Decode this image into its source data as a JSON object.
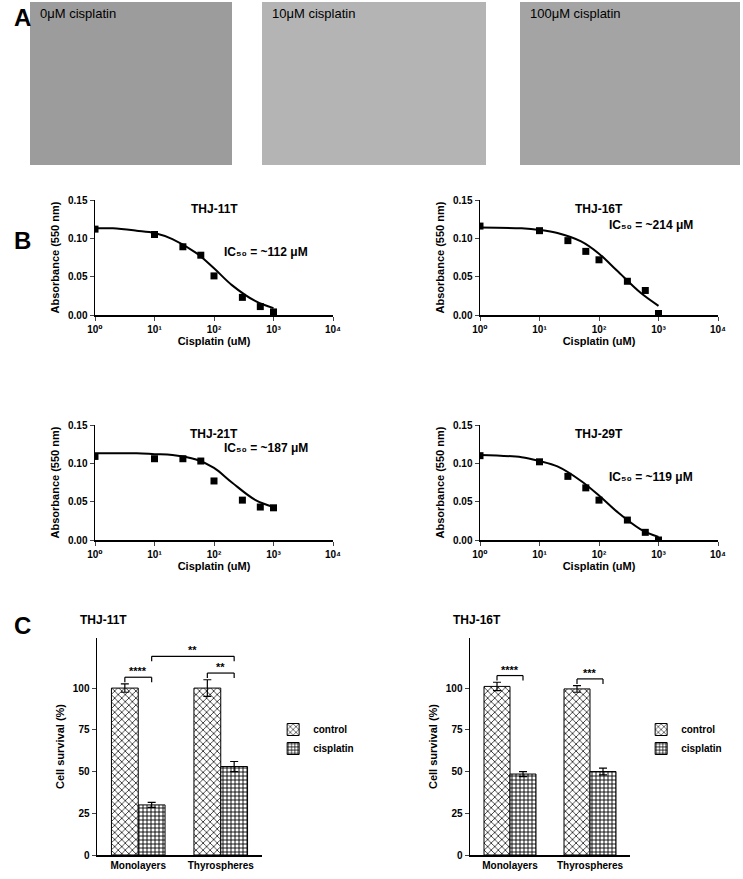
{
  "panel_labels": [
    "A",
    "B",
    "C"
  ],
  "images": [
    {
      "label": "0μM cisplatin"
    },
    {
      "label": "10μM cisplatin"
    },
    {
      "label": "100μM cisplatin"
    }
  ],
  "chart_data": [
    {
      "type": "scatter",
      "title": "THJ-11T",
      "xlabel": "Cisplatin (uM)",
      "ylabel": "Absorbance (550 nm)",
      "annotation": "IC₅₀ = ~112 μM",
      "log": "x",
      "grid": false,
      "xlim": [
        1,
        10000
      ],
      "xticks": [
        {
          "value": 1,
          "label": "10⁰"
        },
        {
          "value": 10,
          "label": "10¹"
        },
        {
          "value": 100,
          "label": "10²"
        },
        {
          "value": 1000,
          "label": "10³"
        },
        {
          "value": 10000,
          "label": "10⁴"
        }
      ],
      "ylim": [
        0,
        0.15
      ],
      "yticks": [
        {
          "value": 0,
          "label": "0.00"
        },
        {
          "value": 0.05,
          "label": "0.05"
        },
        {
          "value": 0.1,
          "label": "0.10"
        },
        {
          "value": 0.15,
          "label": "0.15"
        }
      ],
      "series": [
        {
          "type": "scatter",
          "marker": "square",
          "color": "#000000",
          "x": [
            1,
            10,
            30,
            60,
            100,
            300,
            600,
            1000
          ],
          "values": [
            0.112,
            0.105,
            0.089,
            0.078,
            0.051,
            0.023,
            0.011,
            0.004
          ]
        },
        {
          "type": "line",
          "line_style": "solid",
          "color": "#000000",
          "x": [
            1,
            2,
            5,
            10,
            20,
            50,
            100,
            200,
            500,
            1000
          ],
          "values": [
            0.113,
            0.113,
            0.11,
            0.107,
            0.099,
            0.081,
            0.061,
            0.039,
            0.018,
            0.009
          ]
        }
      ]
    },
    {
      "type": "scatter",
      "title": "THJ-16T",
      "xlabel": "Cisplatin (uM)",
      "ylabel": "Absorbance (550 nm)",
      "annotation": "IC₅₀ = ~214 μM",
      "log": "x",
      "grid": false,
      "xlim": [
        1,
        10000
      ],
      "xticks": [
        {
          "value": 1,
          "label": "10⁰"
        },
        {
          "value": 10,
          "label": "10¹"
        },
        {
          "value": 100,
          "label": "10²"
        },
        {
          "value": 1000,
          "label": "10³"
        },
        {
          "value": 10000,
          "label": "10⁴"
        }
      ],
      "ylim": [
        0,
        0.15
      ],
      "yticks": [
        {
          "value": 0,
          "label": "0.00"
        },
        {
          "value": 0.05,
          "label": "0.05"
        },
        {
          "value": 0.1,
          "label": "0.10"
        },
        {
          "value": 0.15,
          "label": "0.15"
        }
      ],
      "series": [
        {
          "type": "scatter",
          "marker": "square",
          "color": "#000000",
          "x": [
            1,
            10,
            30,
            60,
            100,
            300,
            600,
            1000
          ],
          "values": [
            0.116,
            0.11,
            0.097,
            0.083,
            0.072,
            0.044,
            0.032,
            0.002
          ]
        },
        {
          "type": "line",
          "line_style": "solid",
          "color": "#000000",
          "x": [
            1,
            5,
            10,
            20,
            50,
            100,
            200,
            500,
            1000
          ],
          "values": [
            0.114,
            0.113,
            0.111,
            0.107,
            0.096,
            0.08,
            0.058,
            0.029,
            0.012
          ]
        }
      ]
    },
    {
      "type": "scatter",
      "title": "THJ-21T",
      "xlabel": "Cisplatin (uM)",
      "ylabel": "Absorbance (550 nm)",
      "annotation": "IC₅₀ = ~187 μM",
      "log": "x",
      "grid": false,
      "xlim": [
        1,
        10000
      ],
      "xticks": [
        {
          "value": 1,
          "label": "10⁰"
        },
        {
          "value": 10,
          "label": "10¹"
        },
        {
          "value": 100,
          "label": "10²"
        },
        {
          "value": 1000,
          "label": "10³"
        },
        {
          "value": 10000,
          "label": "10⁴"
        }
      ],
      "ylim": [
        0,
        0.15
      ],
      "yticks": [
        {
          "value": 0,
          "label": "0.00"
        },
        {
          "value": 0.05,
          "label": "0.05"
        },
        {
          "value": 0.1,
          "label": "0.10"
        },
        {
          "value": 0.15,
          "label": "0.15"
        }
      ],
      "series": [
        {
          "type": "scatter",
          "marker": "square",
          "color": "#000000",
          "x": [
            1,
            10,
            30,
            60,
            100,
            300,
            600,
            1000
          ],
          "values": [
            0.109,
            0.106,
            0.106,
            0.103,
            0.077,
            0.052,
            0.043,
            0.042
          ]
        },
        {
          "type": "line",
          "line_style": "solid",
          "color": "#000000",
          "x": [
            1,
            5,
            10,
            20,
            50,
            100,
            200,
            500,
            1000
          ],
          "values": [
            0.113,
            0.113,
            0.112,
            0.111,
            0.105,
            0.094,
            0.075,
            0.052,
            0.043
          ]
        }
      ]
    },
    {
      "type": "scatter",
      "title": "THJ-29T",
      "xlabel": "Cisplatin (uM)",
      "ylabel": "Absorbance (550 nm)",
      "annotation": "IC₅₀ = ~119 μM",
      "log": "x",
      "grid": false,
      "xlim": [
        1,
        10000
      ],
      "xticks": [
        {
          "value": 1,
          "label": "10⁰"
        },
        {
          "value": 10,
          "label": "10¹"
        },
        {
          "value": 100,
          "label": "10²"
        },
        {
          "value": 1000,
          "label": "10³"
        },
        {
          "value": 10000,
          "label": "10⁴"
        }
      ],
      "ylim": [
        0,
        0.15
      ],
      "yticks": [
        {
          "value": 0,
          "label": "0.00"
        },
        {
          "value": 0.05,
          "label": "0.05"
        },
        {
          "value": 0.1,
          "label": "0.10"
        },
        {
          "value": 0.15,
          "label": "0.15"
        }
      ],
      "series": [
        {
          "type": "scatter",
          "marker": "square",
          "color": "#000000",
          "x": [
            1,
            10,
            30,
            60,
            100,
            300,
            600,
            1000
          ],
          "values": [
            0.11,
            0.102,
            0.083,
            0.068,
            0.052,
            0.026,
            0.01,
            0.0
          ]
        },
        {
          "type": "line",
          "line_style": "solid",
          "color": "#000000",
          "x": [
            1,
            5,
            10,
            20,
            50,
            100,
            200,
            500,
            1000
          ],
          "values": [
            0.111,
            0.108,
            0.103,
            0.096,
            0.077,
            0.058,
            0.037,
            0.014,
            0.004
          ]
        }
      ]
    },
    {
      "type": "bar",
      "title": "THJ-11T",
      "ylabel": "Cell survival (%)",
      "grid": false,
      "legend": "right",
      "categories": [
        "Monolayers",
        "Thyrospheres"
      ],
      "series": [
        {
          "name": "control",
          "color": "#6a6a6a",
          "values": [
            100,
            100
          ],
          "errors": [
            2.5,
            5
          ]
        },
        {
          "name": "cisplatin",
          "color": "#ffffff",
          "values": [
            30,
            53
          ],
          "errors": [
            1.5,
            3
          ]
        }
      ],
      "ylim": [
        0,
        130
      ],
      "yticks": [
        0,
        25,
        50,
        75,
        100
      ],
      "significance": [
        {
          "between": [
            [
              "Monolayers",
              "control"
            ],
            [
              "Monolayers",
              "cisplatin"
            ]
          ],
          "label": "****"
        },
        {
          "between": [
            [
              "Thyrospheres",
              "control"
            ],
            [
              "Thyrospheres",
              "cisplatin"
            ]
          ],
          "label": "**"
        },
        {
          "between": [
            [
              "Monolayers",
              "cisplatin"
            ],
            [
              "Thyrospheres",
              "cisplatin"
            ]
          ],
          "label": "**"
        }
      ]
    },
    {
      "type": "bar",
      "title": "THJ-16T",
      "ylabel": "Cell survival (%)",
      "grid": false,
      "legend": "right",
      "categories": [
        "Monolayers",
        "Thyrospheres"
      ],
      "series": [
        {
          "name": "control",
          "color": "#6a6a6a",
          "values": [
            101,
            99.5
          ],
          "errors": [
            2.5,
            2
          ]
        },
        {
          "name": "cisplatin",
          "color": "#ffffff",
          "values": [
            48.5,
            50
          ],
          "errors": [
            1.5,
            2
          ]
        }
      ],
      "ylim": [
        0,
        130
      ],
      "yticks": [
        0,
        25,
        50,
        75,
        100
      ],
      "significance": [
        {
          "between": [
            [
              "Monolayers",
              "control"
            ],
            [
              "Monolayers",
              "cisplatin"
            ]
          ],
          "label": "****"
        },
        {
          "between": [
            [
              "Thyrospheres",
              "control"
            ],
            [
              "Thyrospheres",
              "cisplatin"
            ]
          ],
          "label": "***"
        }
      ]
    }
  ]
}
